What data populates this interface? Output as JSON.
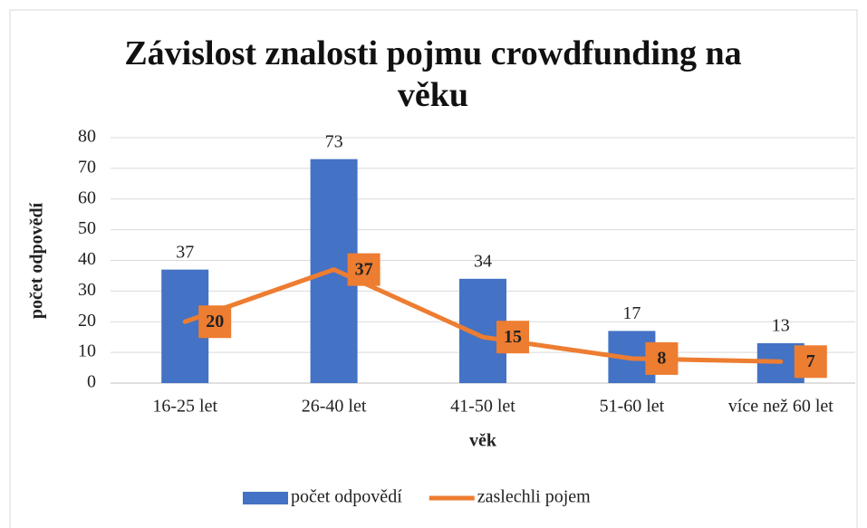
{
  "chart_data": {
    "type": "combo",
    "title": "Závislost znalosti pojmu crowdfunding na věku",
    "xlabel": "věk",
    "ylabel": "počet odpovědí",
    "categories": [
      "16-25 let",
      "26-40 let",
      "41-50 let",
      "51-60 let",
      "více než 60 let"
    ],
    "series": [
      {
        "name": "počet odpovědí",
        "type": "bar",
        "color": "#4472c4",
        "values": [
          37,
          73,
          34,
          17,
          13
        ]
      },
      {
        "name": "zaslechli pojem",
        "type": "line",
        "color": "#ed7d31",
        "values": [
          20,
          37,
          15,
          8,
          7
        ]
      }
    ],
    "ylim": [
      0,
      80
    ],
    "yticks": [
      0,
      10,
      20,
      30,
      40,
      50,
      60,
      70,
      80
    ],
    "grid": true,
    "legend": "bottom"
  }
}
